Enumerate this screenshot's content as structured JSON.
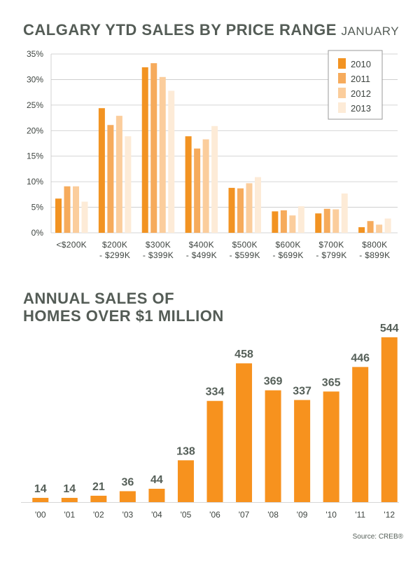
{
  "title": "CALGARY YTD SALES BY PRICE RANGE",
  "subtitle": "JANUARY",
  "title2_line1": "ANNUAL SALES OF",
  "title2_line2": "HOMES OVER $1 MILLION",
  "source": "Source: CREB®",
  "colors": {
    "2010": "#f29322",
    "2011": "#f6ab5c",
    "2012": "#fbcd9c",
    "2013": "#fdebd7",
    "bars2": "#f7921e",
    "grid": "#c8c8c8"
  },
  "chart_data": [
    {
      "type": "bar",
      "title": "CALGARY YTD SALES BY PRICE RANGE JANUARY",
      "categories": [
        [
          "<$200K",
          ""
        ],
        [
          "$200K",
          "- $299K"
        ],
        [
          "$300K",
          "- $399K"
        ],
        [
          "$400K",
          "- $499K"
        ],
        [
          "$500K",
          "- $599K"
        ],
        [
          "$600K",
          "- $699K"
        ],
        [
          "$700K",
          "- $799K"
        ],
        [
          "$800K",
          "- $899K"
        ]
      ],
      "series": [
        {
          "name": "2010",
          "values": [
            6.7,
            24.4,
            32.4,
            18.9,
            8.8,
            4.2,
            3.8,
            1.1
          ]
        },
        {
          "name": "2011",
          "values": [
            9.1,
            21.1,
            33.2,
            16.5,
            8.7,
            4.4,
            4.7,
            2.3
          ]
        },
        {
          "name": "2012",
          "values": [
            9.1,
            22.9,
            30.5,
            18.3,
            9.7,
            3.4,
            4.6,
            1.6
          ]
        },
        {
          "name": "2013",
          "values": [
            6.1,
            18.9,
            27.8,
            20.9,
            10.9,
            5.2,
            7.7,
            2.8
          ]
        }
      ],
      "yticks": [
        "0%",
        "5%",
        "10%",
        "15%",
        "20%",
        "25%",
        "30%",
        "35%"
      ],
      "ylim": [
        0,
        35
      ],
      "grid": true,
      "legend": "top-right"
    },
    {
      "type": "bar",
      "title": "ANNUAL SALES OF HOMES OVER $1 MILLION",
      "categories": [
        "'00",
        "'01",
        "'02",
        "'03",
        "'04",
        "'05",
        "'06",
        "'07",
        "'08",
        "'09",
        "'10",
        "'11",
        "'12"
      ],
      "values": [
        14,
        14,
        21,
        36,
        44,
        138,
        334,
        458,
        369,
        337,
        365,
        446,
        544
      ],
      "labels": [
        "14",
        "14",
        "21",
        "36",
        "44",
        "138",
        "334",
        "458",
        "369",
        "337",
        "365",
        "446",
        "544"
      ]
    }
  ]
}
